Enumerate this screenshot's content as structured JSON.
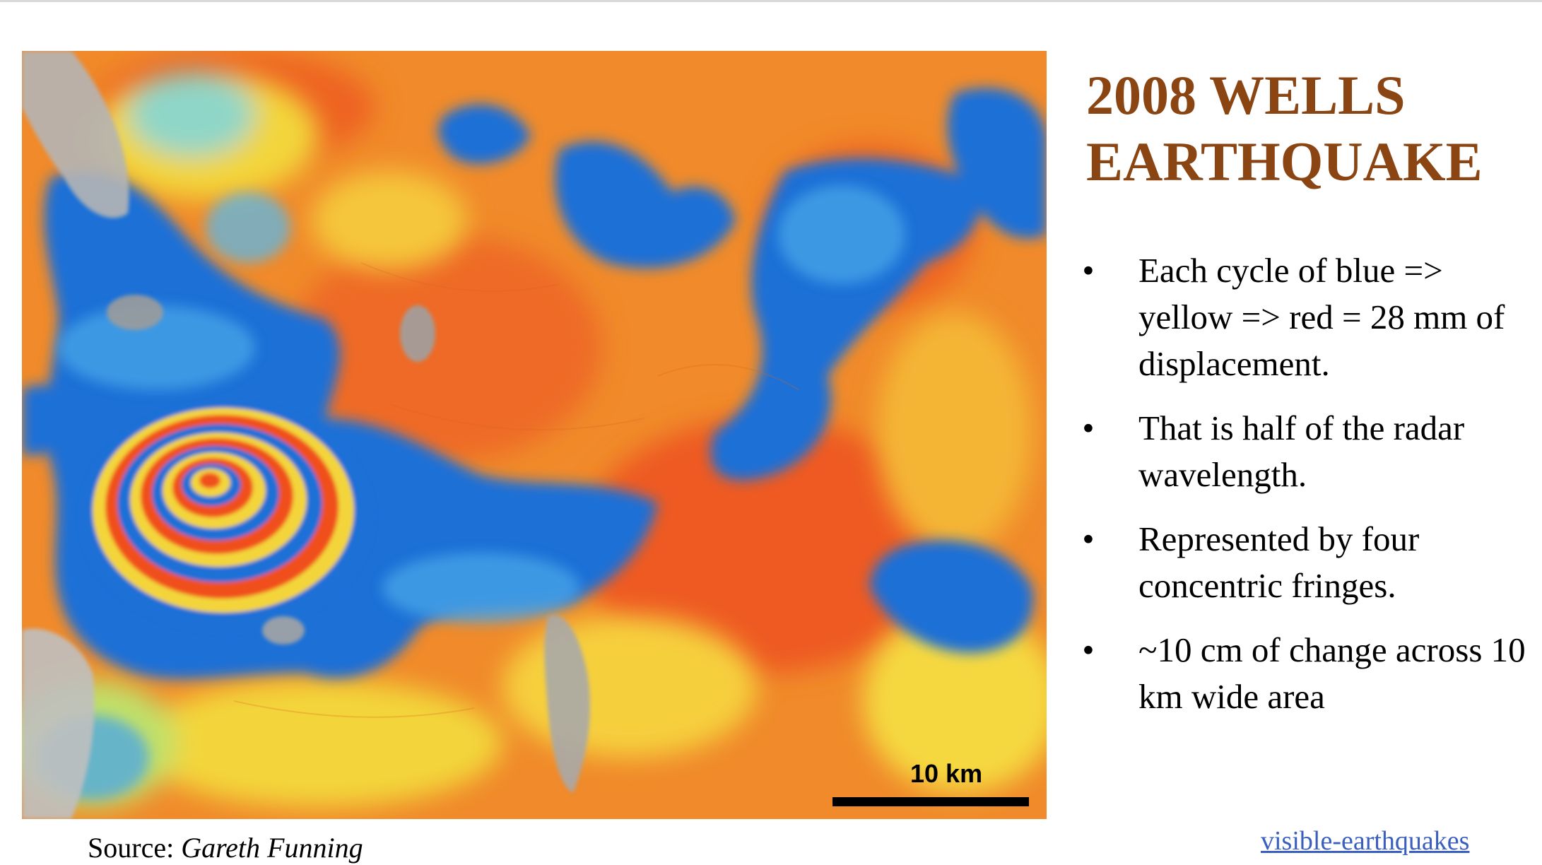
{
  "slide": {
    "title_line1": "2008 WELLS",
    "title_line2": "EARTHQUAKE",
    "bullets": [
      {
        "symbol": "•",
        "text": "Each cycle of blue => yellow => red = 28 mm of displacement."
      },
      {
        "symbol": "•",
        "text": "That is half of the radar wavelength."
      },
      {
        "symbol": "•",
        "text": "Represented by four concentric fringes."
      },
      {
        "symbol": "•",
        "text": "~10 cm of change across 10 km wide area"
      }
    ],
    "source_prefix": "Source:",
    "source_author": "Gareth Funning",
    "link_text": "visible-earthquakes"
  },
  "map": {
    "scale_label": "10 km",
    "colors": {
      "title": "#8b4513",
      "fringe_red": "#f0501e",
      "fringe_orange": "#f08a2a",
      "fringe_yellow": "#f3d53a",
      "fringe_blue": "#1e6fd6",
      "fringe_light_blue": "#4aa6e8",
      "link": "#3b5fbf"
    },
    "fringe_cycle": [
      "blue",
      "yellow",
      "red"
    ],
    "fringe_count": 4
  }
}
